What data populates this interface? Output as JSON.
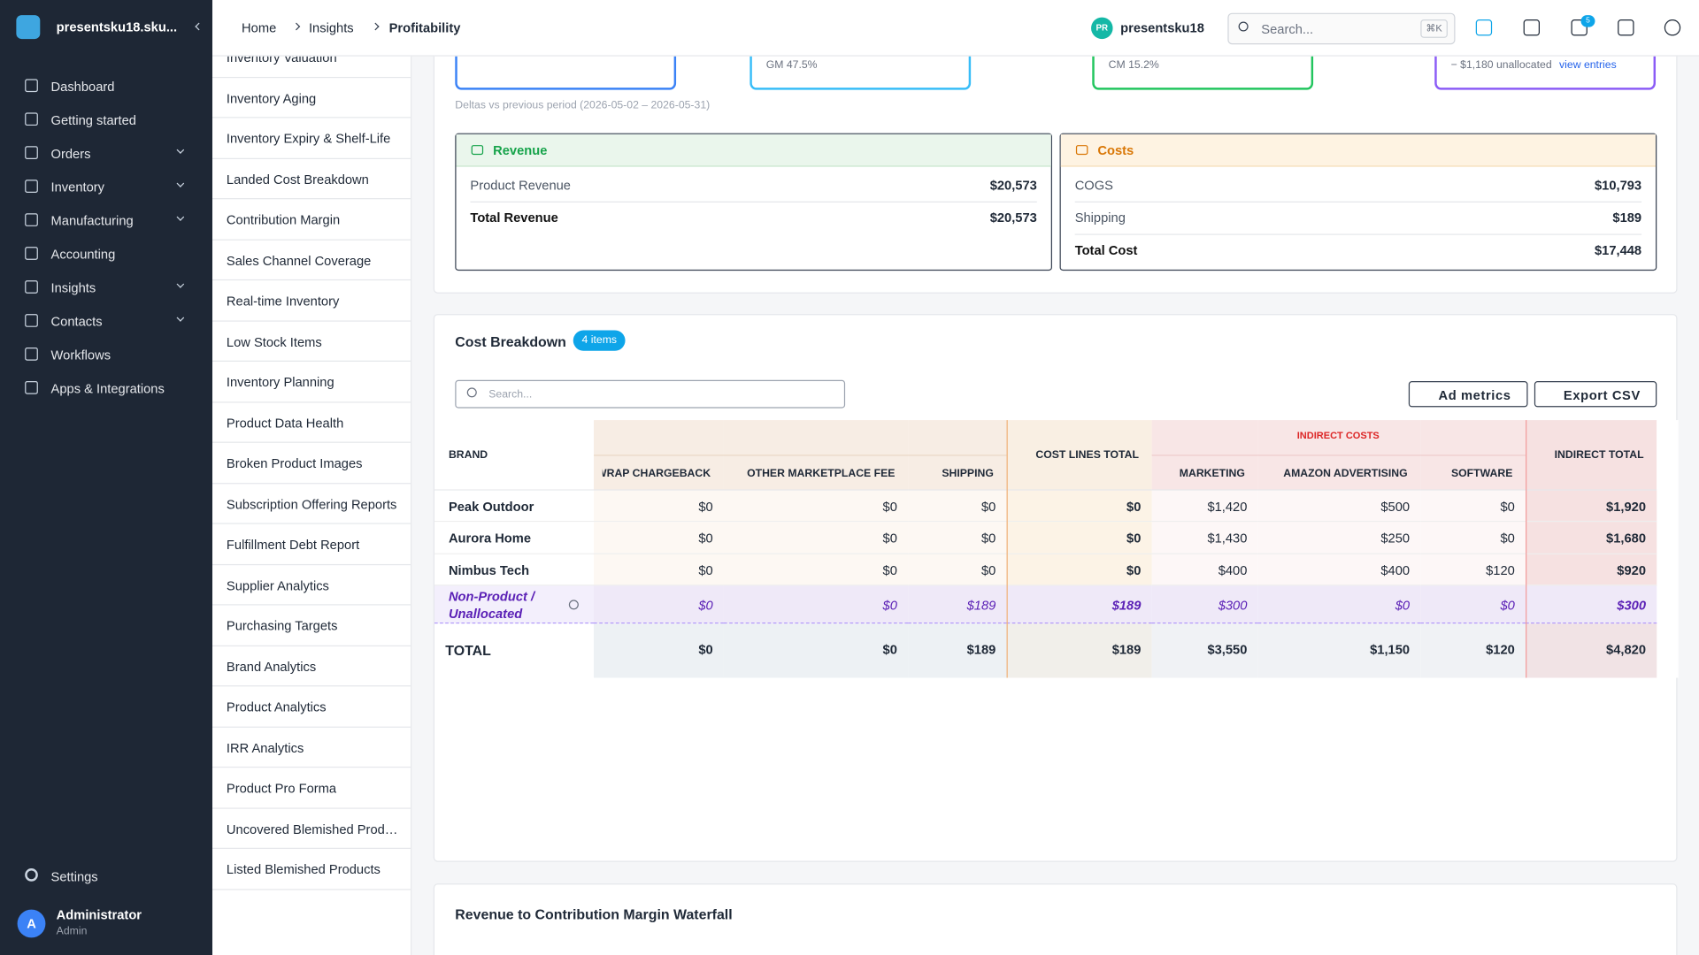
{
  "sidebar": {
    "org": "presentsku18.sku...",
    "nav": [
      "Dashboard",
      "Getting started",
      "Orders",
      "Inventory",
      "Manufacturing",
      "Accounting",
      "Insights",
      "Contacts",
      "Workflows",
      "Apps & Integrations"
    ],
    "settings": "Settings",
    "user": {
      "initial": "A",
      "name": "Administrator",
      "role": "Admin"
    }
  },
  "breadcrumb": [
    "Home",
    "Insights",
    "Profitability"
  ],
  "topbar": {
    "avatar": "PR",
    "account": "presentsku18",
    "search": "Search...",
    "shortcut": "⌘K",
    "badge": "5"
  },
  "reports": [
    "Inventory Valuation",
    "Inventory Aging",
    "Inventory Expiry & Shelf-Life",
    "Landed Cost Breakdown",
    "Contribution Margin",
    "Sales Channel Coverage",
    "Real-time Inventory",
    "Low Stock Items",
    "Inventory Planning",
    "Product Data Health",
    "Broken Product Images",
    "Subscription Offering Reports",
    "Fulfillment Debt Report",
    "Supplier Analytics",
    "Purchasing Targets",
    "Brand Analytics",
    "Product Analytics",
    "IRR Analytics",
    "Product Pro Forma",
    "Uncovered Blemished Produ...",
    "Listed Blemished Products"
  ],
  "kpi": {
    "gm": "GM 47.5%",
    "cm": "CM 15.2%",
    "unallocated": "− $1,180 unallocated",
    "view_entries": "view entries",
    "deltas": "Deltas vs previous period (2026-05-02 – 2026-05-31)"
  },
  "revenue": {
    "title": "Revenue",
    "rows": [
      [
        "Product Revenue",
        "$20,573"
      ],
      [
        "Total Revenue",
        "$20,573"
      ]
    ]
  },
  "costs": {
    "title": "Costs",
    "rows": [
      [
        "COGS",
        "$10,793"
      ],
      [
        "Shipping",
        "$189"
      ],
      [
        "Total Cost",
        "$17,448"
      ]
    ]
  },
  "cost_breakdown": {
    "title": "Cost Breakdown",
    "count": "4 items",
    "search": "Search...",
    "ad_metrics": "Ad metrics",
    "export": "Export CSV",
    "group_indirect": "INDIRECT COSTS",
    "columns": [
      "BRAND",
      "WRAP CHARGEBACK",
      "OTHER MARKETPLACE FEE",
      "SHIPPING",
      "COST LINES TOTAL",
      "MARKETING",
      "AMAZON ADVERTISING",
      "SOFTWARE",
      "INDIRECT TOTAL"
    ],
    "rows": [
      [
        "Peak Outdoor",
        "$0",
        "$0",
        "$0",
        "$0",
        "$1,420",
        "$500",
        "$0",
        "$1,920"
      ],
      [
        "Aurora Home",
        "$0",
        "$0",
        "$0",
        "$0",
        "$1,430",
        "$250",
        "$0",
        "$1,680"
      ],
      [
        "Nimbus Tech",
        "$0",
        "$0",
        "$0",
        "$0",
        "$400",
        "$400",
        "$120",
        "$920"
      ],
      [
        "Non-Product / Unallocated",
        "$0",
        "$0",
        "$189",
        "$189",
        "$300",
        "$0",
        "$0",
        "$300"
      ]
    ],
    "total": [
      "TOTAL",
      "$0",
      "$0",
      "$189",
      "$189",
      "$3,550",
      "$1,150",
      "$120",
      "$4,820"
    ]
  },
  "waterfall": {
    "title": "Revenue to Contribution Margin Waterfall"
  }
}
